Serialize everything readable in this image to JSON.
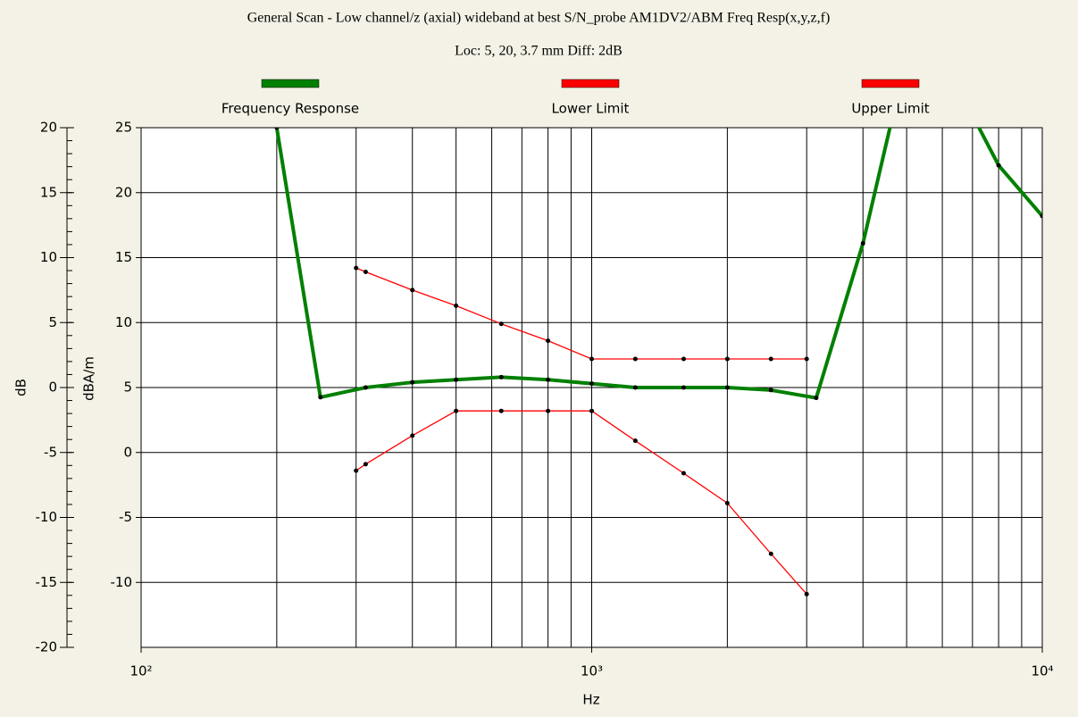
{
  "chart_data": {
    "type": "line",
    "title": "General Scan - Low channel/z (axial) wideband at best S/N_probe AM1DV2/ABM Freq Resp(x,y,z,f)",
    "subtitle": "Loc: 5, 20, 3.7 mm Diff: 2dB",
    "xlabel": "Hz",
    "ylabel": "dBA/m",
    "y2label": "dB",
    "xscale": "log",
    "xlim": [
      100,
      10000
    ],
    "xticks": [
      {
        "value": 100,
        "label": "10²"
      },
      {
        "value": 1000,
        "label": "10³"
      },
      {
        "value": 10000,
        "label": "10⁴"
      }
    ],
    "xgrid": [
      200,
      300,
      400,
      500,
      600,
      700,
      800,
      900,
      1000,
      2000,
      3000,
      4000,
      5000,
      6000,
      7000,
      8000,
      9000
    ],
    "ylim": [
      -15,
      25
    ],
    "yticks": [
      -10,
      -5,
      0,
      5,
      10,
      15,
      20,
      25
    ],
    "y2lim": [
      -20,
      20
    ],
    "y2ticks": [
      -20,
      -15,
      -10,
      -5,
      0,
      5,
      10,
      15,
      20
    ],
    "y2_minor_step": 1,
    "grid": true,
    "legend": "top",
    "series": [
      {
        "name": "Frequency Response",
        "color": "#008000",
        "x": [
          200,
          250,
          315,
          400,
          500,
          630,
          800,
          1000,
          1250,
          1600,
          2000,
          2500,
          3150,
          4000,
          5000,
          6300,
          8000,
          10000
        ],
        "values": [
          25,
          4.25,
          5.0,
          5.4,
          5.6,
          5.8,
          5.6,
          5.3,
          5.0,
          5.0,
          5.0,
          4.8,
          4.2,
          16.1,
          30.5,
          29,
          22.1,
          18.2
        ]
      },
      {
        "name": "Lower Limit",
        "color": "#ff0000",
        "x": [
          300,
          315,
          400,
          500,
          630,
          800,
          1000,
          1250,
          1600,
          2000,
          2500,
          3000
        ],
        "values": [
          -1.4,
          -0.9,
          1.3,
          3.2,
          3.2,
          3.2,
          3.2,
          0.9,
          -1.6,
          -3.9,
          -7.8,
          -10.9
        ]
      },
      {
        "name": "Upper Limit",
        "color": "#ff0000",
        "x": [
          300,
          315,
          400,
          500,
          630,
          800,
          1000,
          1250,
          1600,
          2000,
          2500,
          3000
        ],
        "values": [
          14.2,
          13.9,
          12.5,
          11.3,
          9.9,
          8.6,
          7.2,
          7.2,
          7.2,
          7.2,
          7.2,
          7.2
        ]
      }
    ]
  }
}
